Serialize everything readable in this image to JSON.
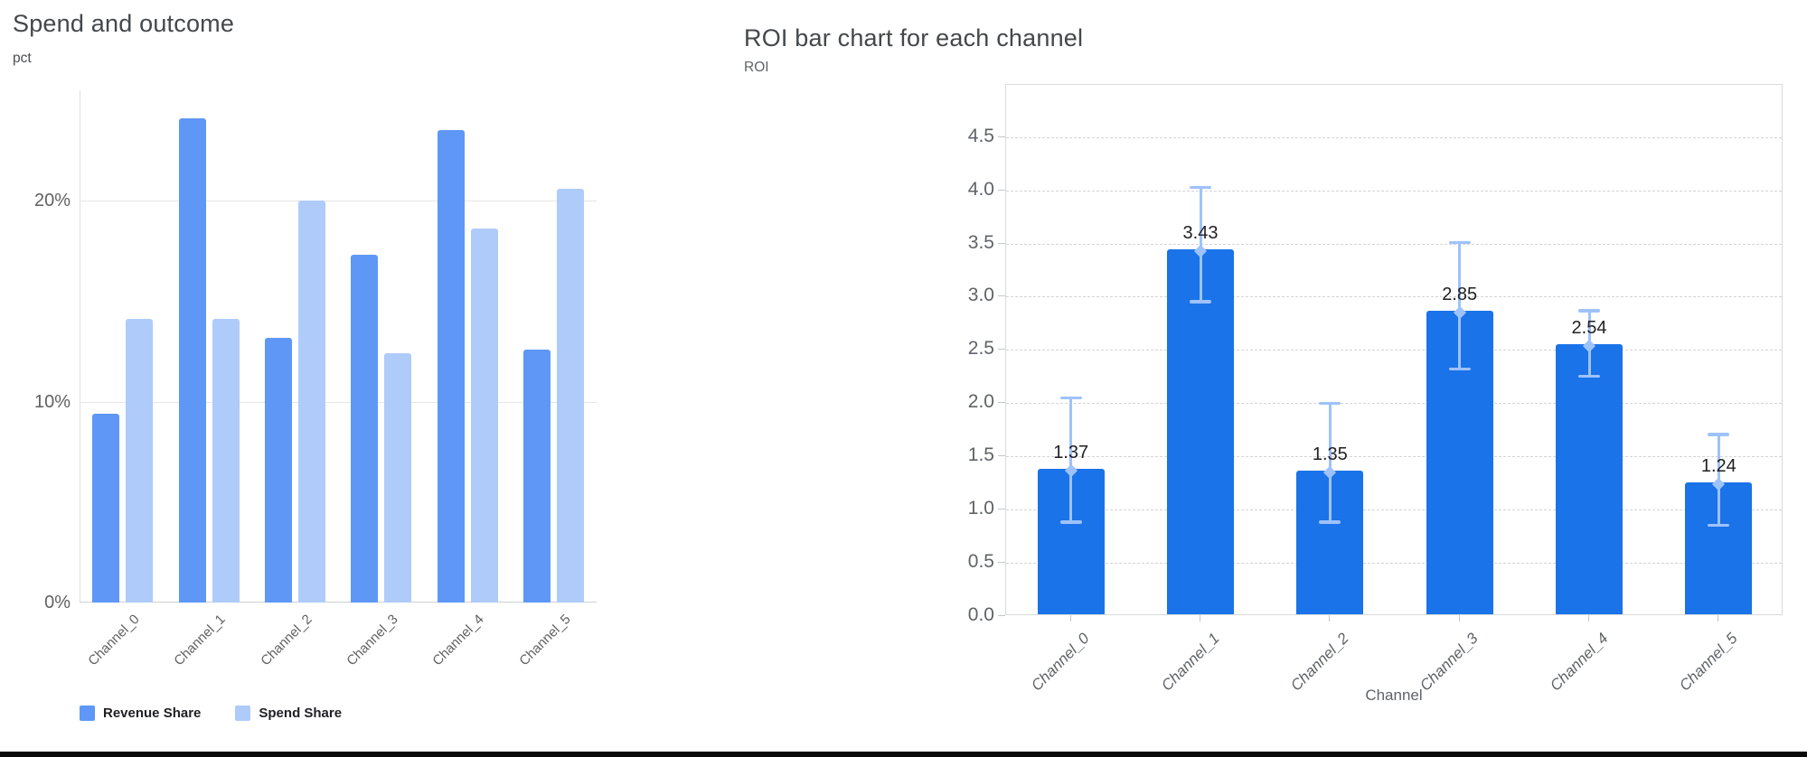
{
  "page": {
    "background": "#ffffff",
    "bottom_bar_color": "#0a0a0a"
  },
  "chart_data": [
    {
      "type": "bar",
      "title": "Spend and outcome",
      "ylabel": "pct",
      "categories": [
        "Channel_0",
        "Channel_1",
        "Channel_2",
        "Channel_3",
        "Channel_4",
        "Channel_5"
      ],
      "series": [
        {
          "name": "Revenue Share",
          "color": "#5e97f6",
          "values": [
            9.4,
            24.1,
            13.2,
            17.3,
            23.5,
            12.6
          ]
        },
        {
          "name": "Spend Share",
          "color": "#aecbfa",
          "values": [
            14.1,
            14.1,
            20.0,
            12.4,
            18.6,
            20.6
          ]
        }
      ],
      "yticks": [
        {
          "value": 0,
          "label": "0%"
        },
        {
          "value": 10,
          "label": "10%"
        },
        {
          "value": 20,
          "label": "20%"
        }
      ],
      "ylim": [
        0,
        25.5
      ],
      "grid": "solid",
      "legend_position": "bottom"
    },
    {
      "type": "bar",
      "title": "ROI bar chart for each channel",
      "ylabel": "ROI",
      "xlabel": "Channel",
      "categories": [
        "Channel_0",
        "Channel_1",
        "Channel_2",
        "Channel_3",
        "Channel_4",
        "Channel_5"
      ],
      "values": [
        1.37,
        3.43,
        1.35,
        2.85,
        2.54,
        1.24
      ],
      "value_labels": [
        "1.37",
        "3.43",
        "1.35",
        "2.85",
        "2.54",
        "1.24"
      ],
      "error_low": [
        0.88,
        2.95,
        0.88,
        2.32,
        2.25,
        0.85
      ],
      "error_high": [
        2.05,
        4.03,
        2.0,
        3.51,
        2.87,
        1.71
      ],
      "yticks": [
        {
          "value": 0.0,
          "label": "0.0"
        },
        {
          "value": 0.5,
          "label": "0.5"
        },
        {
          "value": 1.0,
          "label": "1.0"
        },
        {
          "value": 1.5,
          "label": "1.5"
        },
        {
          "value": 2.0,
          "label": "2.0"
        },
        {
          "value": 2.5,
          "label": "2.5"
        },
        {
          "value": 3.0,
          "label": "3.0"
        },
        {
          "value": 3.5,
          "label": "3.5"
        },
        {
          "value": 4.0,
          "label": "4.0"
        },
        {
          "value": 4.5,
          "label": "4.5"
        }
      ],
      "ylim": [
        0,
        4.99
      ],
      "bar_color": "#1a73e8",
      "error_color": "#9ec2fb",
      "grid": "dashed",
      "legend_position": "none"
    }
  ]
}
